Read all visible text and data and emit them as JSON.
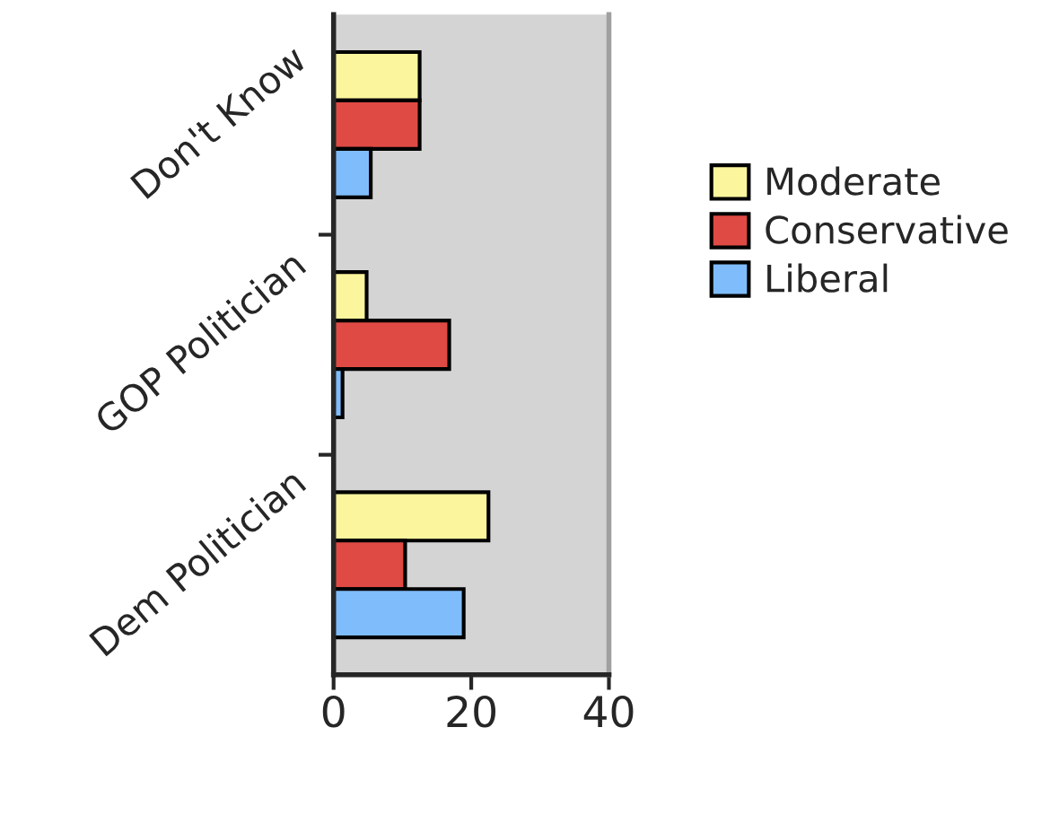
{
  "chart_data": {
    "type": "bar",
    "orientation": "horizontal",
    "categories": [
      "Don't Know",
      "GOP Politician",
      "Dem Politician"
    ],
    "series": [
      {
        "name": "Moderate",
        "color": "#fbf59d",
        "values": [
          12.5,
          4.8,
          22.5
        ]
      },
      {
        "name": "Conservative",
        "color": "#e04a44",
        "values": [
          12.5,
          16.8,
          10.4
        ]
      },
      {
        "name": "Liberal",
        "color": "#7fbcfb",
        "values": [
          5.4,
          1.3,
          18.9
        ]
      }
    ],
    "xlim": [
      0,
      40
    ],
    "xticks": [
      0,
      20,
      40
    ],
    "grid": false,
    "legend": "right"
  }
}
